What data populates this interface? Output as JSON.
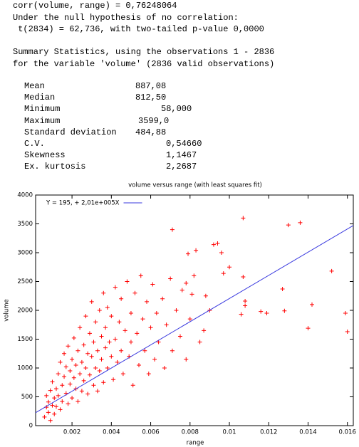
{
  "output": {
    "lines": [
      "corr(volume, range) = 0,76248064",
      "Under the null hypothesis of no correlation:",
      " t(2834) = 62,736, with two-tailed p-value 0,0000",
      "Summary Statistics, using the observations 1 - 2836",
      "for the variable 'volume' (2836 valid observations)"
    ]
  },
  "summary": {
    "rows": [
      [
        "Mean",
        "887,08"
      ],
      [
        "Median",
        "812,50"
      ],
      [
        "Minimum",
        "58,000"
      ],
      [
        "Maximum",
        "3599,0"
      ],
      [
        "Standard deviation",
        "484,88"
      ],
      [
        "C.V.",
        "0,54660"
      ],
      [
        "Skewness",
        "1,1467"
      ],
      [
        "Ex. kurtosis",
        "2,2687"
      ]
    ]
  },
  "chart_data": {
    "type": "scatter",
    "title": "volume versus range (with least squares fit)",
    "x_label": "range",
    "y_label": "volume",
    "xlim": [
      0.00015,
      0.0163
    ],
    "ylim": [
      0,
      4000
    ],
    "xticks": [
      0.002,
      0.004,
      0.006,
      0.008,
      0.01,
      0.012,
      0.014,
      0.016
    ],
    "yticks": [
      0,
      500,
      1000,
      1500,
      2000,
      2500,
      3000,
      3500,
      4000
    ],
    "legend": "top-left",
    "series": [
      {
        "type": "scatter",
        "color": "#ff0000",
        "x": [
          0.0006,
          0.0007,
          0.0007,
          0.0008,
          0.0008,
          0.0009,
          0.0009,
          0.001,
          0.001,
          0.0011,
          0.0011,
          0.0012,
          0.0012,
          0.0013,
          0.0013,
          0.0014,
          0.0014,
          0.0015,
          0.0015,
          0.0016,
          0.0016,
          0.0017,
          0.0017,
          0.0018,
          0.0018,
          0.0019,
          0.0019,
          0.002,
          0.002,
          0.0021,
          0.0021,
          0.0022,
          0.0022,
          0.0023,
          0.0023,
          0.0024,
          0.0024,
          0.0025,
          0.0025,
          0.0026,
          0.0026,
          0.0027,
          0.0027,
          0.0028,
          0.0028,
          0.0029,
          0.0029,
          0.003,
          0.003,
          0.0031,
          0.0031,
          0.0032,
          0.0032,
          0.0033,
          0.0033,
          0.0034,
          0.0034,
          0.0035,
          0.0035,
          0.0036,
          0.0036,
          0.0037,
          0.0037,
          0.0038,
          0.0038,
          0.0039,
          0.004,
          0.004,
          0.0041,
          0.0042,
          0.0042,
          0.0043,
          0.0044,
          0.0045,
          0.0045,
          0.0046,
          0.0047,
          0.0048,
          0.0049,
          0.005,
          0.005,
          0.0051,
          0.0052,
          0.0053,
          0.0054,
          0.0055,
          0.0056,
          0.0057,
          0.0058,
          0.0059,
          0.006,
          0.0061,
          0.0062,
          0.0063,
          0.0064,
          0.0066,
          0.0067,
          0.0068,
          0.007,
          0.0071,
          0.0073,
          0.0075,
          0.0076,
          0.0078,
          0.008,
          0.0082,
          0.0085,
          0.0088,
          0.0107,
          0.013,
          0.0136,
          0.0071,
          0.0083,
          0.0079,
          0.0092,
          0.0094,
          0.0096,
          0.0152,
          0.0159,
          0.016,
          0.0142,
          0.014,
          0.0128,
          0.0116,
          0.0119,
          0.0108,
          0.0108,
          0.0106,
          0.01,
          0.0097,
          0.0107,
          0.0127,
          0.009,
          0.0087,
          0.0078,
          0.0081
        ],
        "values": [
          150,
          320,
          520,
          230,
          410,
          610,
          90,
          350,
          760,
          200,
          480,
          640,
          330,
          900,
          520,
          280,
          1100,
          700,
          420,
          1250,
          850,
          560,
          1020,
          380,
          1380,
          720,
          950,
          1150,
          480,
          830,
          1520,
          640,
          1050,
          1300,
          420,
          900,
          1700,
          1100,
          600,
          1400,
          780,
          1900,
          1000,
          550,
          1250,
          880,
          1600,
          1200,
          2150,
          700,
          1450,
          1000,
          1800,
          1300,
          600,
          2000,
          950,
          1550,
          1150,
          750,
          2300,
          1350,
          1700,
          1000,
          2050,
          1450,
          1200,
          1900,
          800,
          2400,
          1500,
          1100,
          1800,
          2200,
          1300,
          900,
          1650,
          2500,
          1200,
          1950,
          1450,
          700,
          2300,
          1600,
          1050,
          2600,
          1850,
          1300,
          2150,
          900,
          1700,
          2450,
          1150,
          1950,
          1450,
          2200,
          1000,
          1750,
          2550,
          1300,
          2000,
          1550,
          2350,
          1150,
          1850,
          2600,
          1450,
          2250,
          3600,
          3480,
          3520,
          3400,
          3040,
          2980,
          3140,
          3160,
          3000,
          2680,
          1950,
          1630,
          2100,
          1690,
          1990,
          1980,
          1950,
          2160,
          2080,
          1930,
          2750,
          2640,
          2580,
          2370,
          2000,
          1650,
          2470,
          2280
        ]
      },
      {
        "type": "line",
        "name": "Y = 195, + 2,01e+005X",
        "color": "#3b3bdf",
        "x": [
          0.00015,
          0.0163
        ],
        "values": [
          225,
          3471
        ]
      }
    ]
  }
}
